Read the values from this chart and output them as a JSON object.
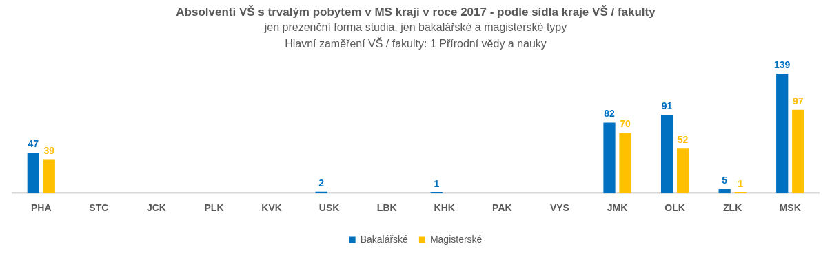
{
  "chart_data": {
    "type": "bar",
    "title": "Absolventi VŠ s trvalým pobytem v MS kraji v roce 2017 - podle sídla kraje VŠ / fakulty",
    "subtitle": "jen prezenční forma studia, jen bakalářské a magisterské typy\nHlavní zaměření VŠ / fakulty: 1 Přírodní vědy a nauky",
    "categories": [
      "PHA",
      "STC",
      "JCK",
      "PLK",
      "KVK",
      "USK",
      "LBK",
      "KHK",
      "PAK",
      "VYS",
      "JMK",
      "OLK",
      "ZLK",
      "MSK"
    ],
    "series": [
      {
        "name": "Bakalářské",
        "color": "#0070c0",
        "values": [
          47,
          null,
          null,
          null,
          null,
          2,
          null,
          1,
          null,
          null,
          82,
          91,
          5,
          139
        ]
      },
      {
        "name": "Magisterské",
        "color": "#ffc000",
        "values": [
          39,
          null,
          null,
          null,
          null,
          null,
          null,
          null,
          null,
          null,
          70,
          52,
          1,
          97
        ]
      }
    ],
    "data_labels": true,
    "legend": "bottom",
    "grid": false
  }
}
